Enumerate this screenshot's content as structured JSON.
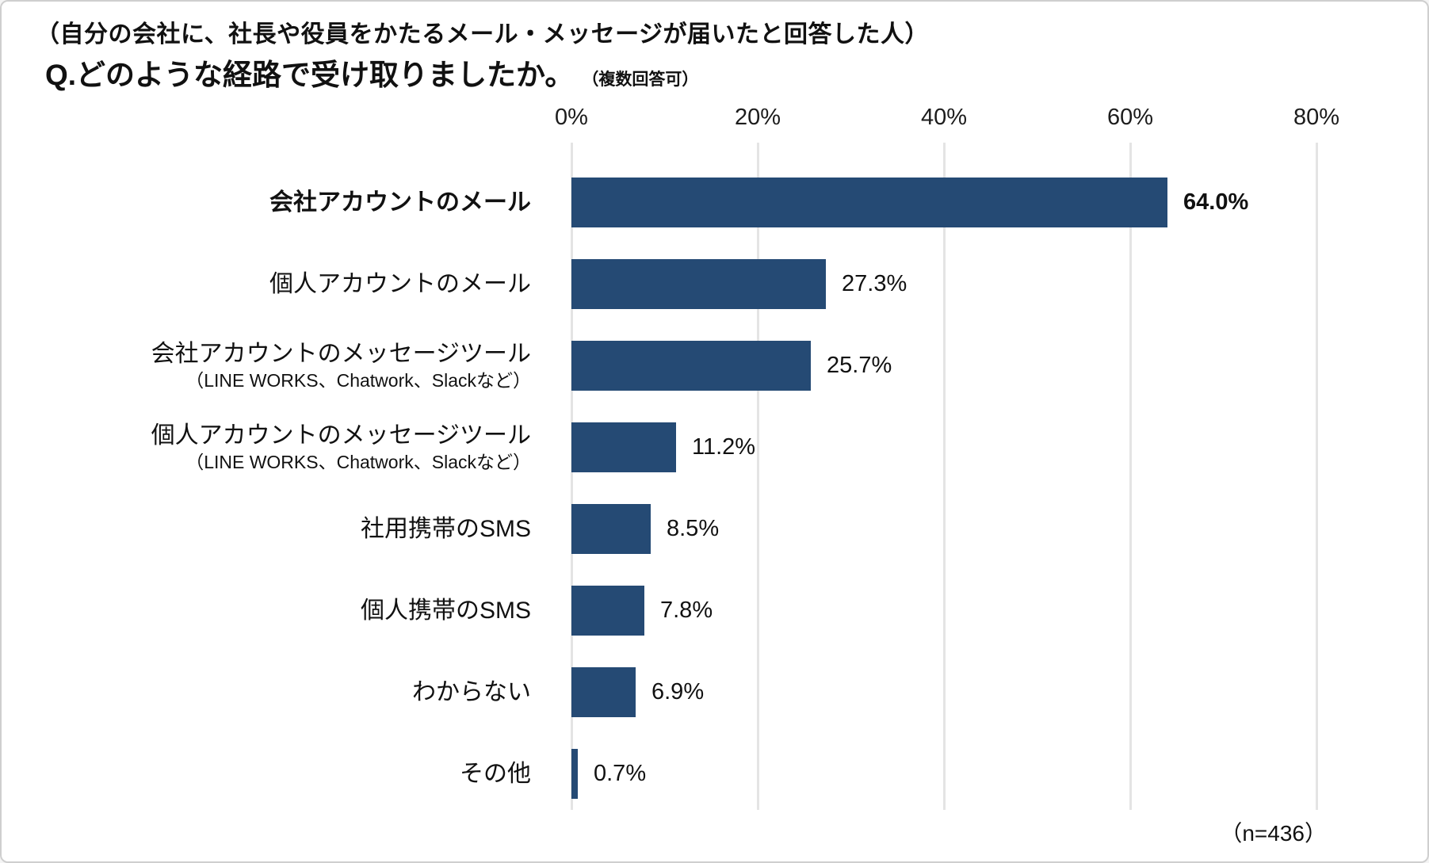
{
  "header": {
    "line1": "（自分の会社に、社長や役員をかたるメール・メッセージが届いたと回答した人）",
    "question": "Q.どのような経路で受け取りましたか。",
    "note": "（複数回答可）"
  },
  "footer": {
    "sample_size": "（n=436）"
  },
  "colors": {
    "bar": "#254a74",
    "grid": "#e4e4e4",
    "text": "#111111",
    "border": "#cfcfcf"
  },
  "chart_data": {
    "type": "bar",
    "orientation": "horizontal",
    "title": "Q.どのような経路で受け取りましたか。（複数回答可）",
    "xlabel": "",
    "ylabel": "",
    "xlim": [
      0,
      80
    ],
    "xticks": [
      0,
      20,
      40,
      60,
      80
    ],
    "xtick_labels": [
      "0%",
      "20%",
      "40%",
      "60%",
      "80%"
    ],
    "grid": true,
    "sample_size": 436,
    "emphasized_index": 0,
    "categories": [
      "会社アカウントのメール",
      "個人アカウントのメール",
      "会社アカウントのメッセージツール",
      "個人アカウントのメッセージツール",
      "社用携帯のSMS",
      "個人携帯のSMS",
      "わからない",
      "その他"
    ],
    "sublabels": [
      "",
      "",
      "（LINE WORKS、Chatwork、Slackなど）",
      "（LINE WORKS、Chatwork、Slackなど）",
      "",
      "",
      "",
      ""
    ],
    "values": [
      64.0,
      27.3,
      25.7,
      11.2,
      8.5,
      7.8,
      6.9,
      0.7
    ],
    "value_labels": [
      "64.0%",
      "27.3%",
      "25.7%",
      "11.2%",
      "8.5%",
      "7.8%",
      "6.9%",
      "0.7%"
    ]
  }
}
